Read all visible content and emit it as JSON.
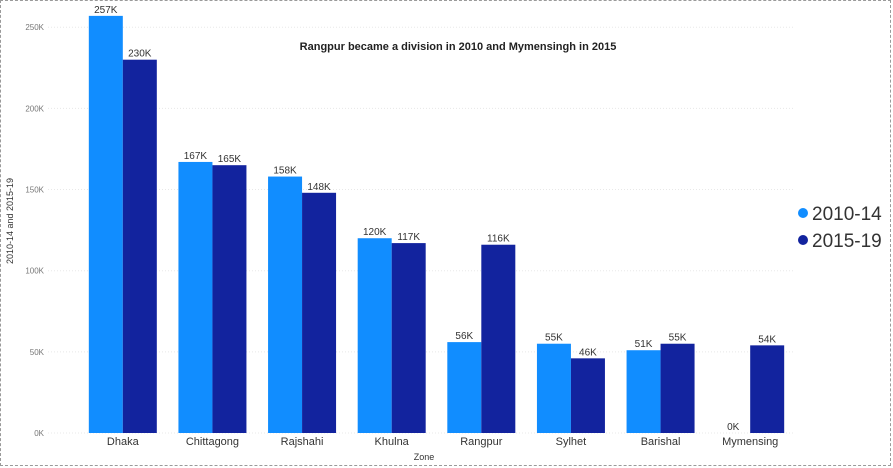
{
  "chart_data": {
    "type": "bar",
    "title": "Rangpur became a division in 2010 and Mymensingh in 2015",
    "xlabel": "Zone",
    "ylabel": "2010-14 and 2015-19",
    "categories": [
      "Dhaka",
      "Chittagong",
      "Rajshahi",
      "Khulna",
      "Rangpur",
      "Sylhet",
      "Barishal",
      "Mymensing"
    ],
    "series": [
      {
        "name": "2010-14",
        "color": "#118dff",
        "values": [
          257000,
          167000,
          158000,
          120000,
          56000,
          55000,
          51000,
          0
        ],
        "labels": [
          "257K",
          "167K",
          "158K",
          "120K",
          "56K",
          "55K",
          "51K",
          "0K"
        ]
      },
      {
        "name": "2015-19",
        "color": "#12239e",
        "values": [
          230000,
          165000,
          148000,
          117000,
          116000,
          46000,
          55000,
          54000
        ],
        "labels": [
          "230K",
          "165K",
          "148K",
          "117K",
          "116K",
          "46K",
          "55K",
          "54K"
        ]
      }
    ],
    "ylim": [
      0,
      260000
    ],
    "yticks": [
      {
        "value": 0,
        "label": "0K"
      },
      {
        "value": 50000,
        "label": "50K"
      },
      {
        "value": 100000,
        "label": "100K"
      },
      {
        "value": 150000,
        "label": "150K"
      },
      {
        "value": 200000,
        "label": "200K"
      },
      {
        "value": 250000,
        "label": "250K"
      }
    ],
    "grid": true,
    "legend_position": "right"
  }
}
